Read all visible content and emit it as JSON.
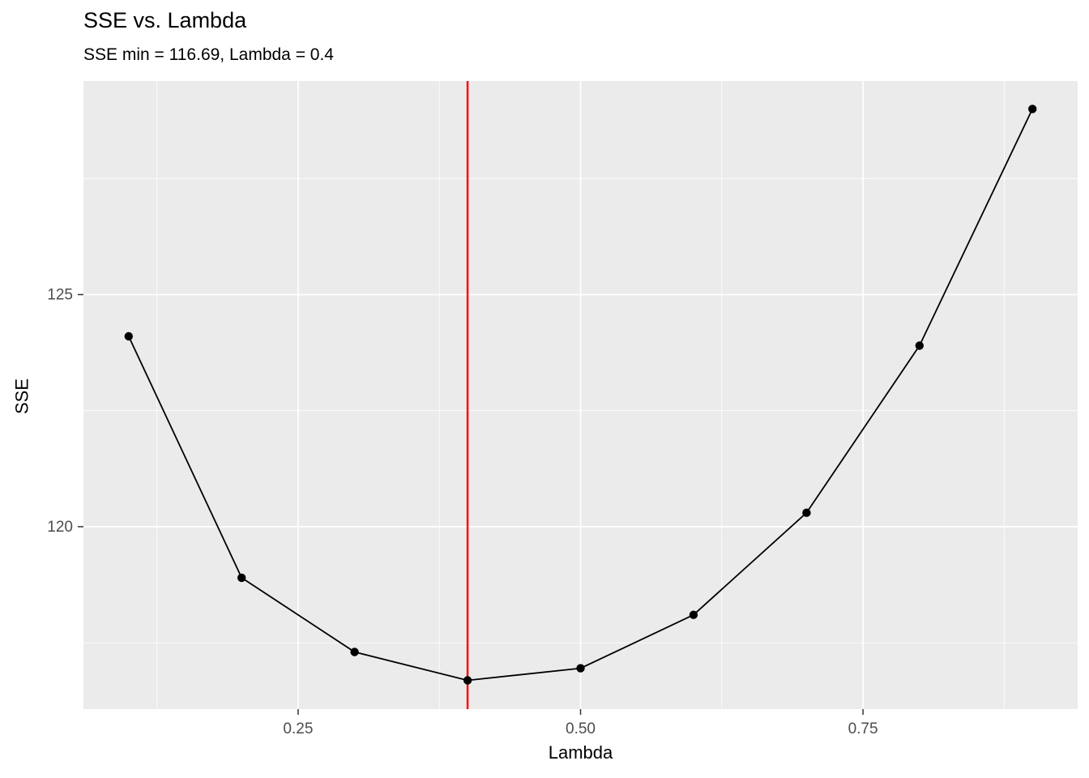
{
  "header": {
    "title": "SSE vs. Lambda",
    "subtitle": "SSE min = 116.69, Lambda = 0.4"
  },
  "chart_data": {
    "type": "line",
    "title": "SSE vs. Lambda",
    "subtitle": "SSE min = 116.69, Lambda = 0.4",
    "xlabel": "Lambda",
    "ylabel": "SSE",
    "x": [
      0.1,
      0.2,
      0.3,
      0.4,
      0.5,
      0.6,
      0.7,
      0.8,
      0.9
    ],
    "y": [
      124.1,
      118.9,
      117.3,
      116.69,
      116.95,
      118.1,
      120.3,
      123.9,
      129.0
    ],
    "sse_min": 116.69,
    "lambda_at_min": 0.4,
    "vline_x": 0.4,
    "xlim": [
      0.06,
      0.94
    ],
    "ylim": [
      116.07,
      129.6
    ],
    "x_major_ticks": [
      0.25,
      0.5,
      0.75
    ],
    "x_tick_labels": [
      "0.25",
      "0.50",
      "0.75"
    ],
    "x_minor_ticks": [
      0.125,
      0.375,
      0.625,
      0.875
    ],
    "y_major_ticks": [
      120,
      125
    ],
    "y_tick_labels": [
      "120",
      "125"
    ],
    "y_minor_ticks": [
      117.5,
      122.5,
      127.5
    ],
    "grid": true,
    "legend": "none",
    "colors": {
      "line": "#000000",
      "point": "#000000",
      "vline": "#FF0000",
      "panel_bg": "#EBEBEB",
      "grid": "#FFFFFF",
      "tick_mark": "#333333",
      "tick_label": "#4D4D4D",
      "title": "#000000"
    }
  }
}
